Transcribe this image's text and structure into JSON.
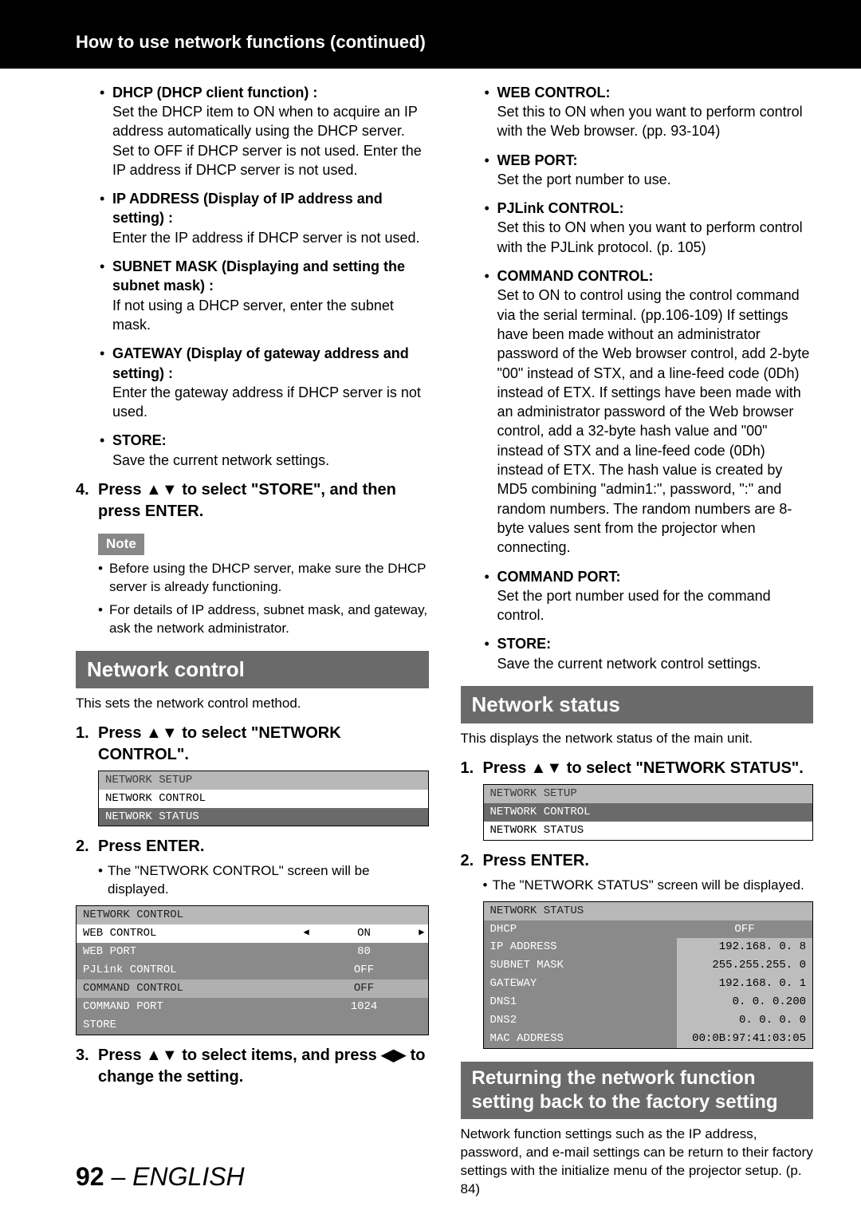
{
  "header": {
    "title": "How to use network functions (continued)"
  },
  "left": {
    "bullets": [
      {
        "title": "DHCP (DHCP client function) :",
        "body": "Set the DHCP item to ON when to acquire an IP address automatically using the DHCP server. Set to OFF if DHCP server is not used. Enter the IP address if DHCP server is not used."
      },
      {
        "title": "IP ADDRESS (Display of IP address and setting) :",
        "body": "Enter the IP address if DHCP server is not used."
      },
      {
        "title": "SUBNET MASK (Displaying and setting the subnet mask) :",
        "body": "If not using a DHCP server, enter the subnet mask."
      },
      {
        "title": "GATEWAY (Display of gateway address and setting) :",
        "body": "Enter the gateway address if DHCP server is not used."
      },
      {
        "title": "STORE:",
        "body": "Save the current network settings."
      }
    ],
    "step4": "Press ▲▼ to select \"STORE\", and then press ENTER.",
    "noteLabel": "Note",
    "notes": [
      "Before using the DHCP server, make sure the DHCP server is already functioning.",
      "For details of IP address, subnet mask, and gateway, ask the network administrator."
    ],
    "sectionBar": "Network control",
    "sectionDesc": "This sets the network control method.",
    "step1": "Press ▲▼ to select \"NETWORK CONTROL\".",
    "menu1": [
      {
        "label": "NETWORK SETUP",
        "style": "lt"
      },
      {
        "label": "NETWORK CONTROL",
        "style": "wt"
      },
      {
        "label": "NETWORK STATUS",
        "style": "sel"
      }
    ],
    "step2": "Press ENTER.",
    "step2sub": "The \"NETWORK CONTROL\" screen will be displayed.",
    "ctrl": {
      "header": "NETWORK CONTROL",
      "rows": [
        {
          "label": "WEB CONTROL",
          "val": "ON",
          "style": "wt",
          "arrows": true
        },
        {
          "label": "WEB PORT",
          "val": "80",
          "style": "gr"
        },
        {
          "label": "PJLink CONTROL",
          "val": "OFF",
          "style": "gr"
        },
        {
          "label": "COMMAND CONTROL",
          "val": "OFF",
          "style": "cmd"
        },
        {
          "label": "COMMAND PORT",
          "val": "1024",
          "style": "gr"
        },
        {
          "label": "STORE",
          "val": "",
          "style": "gr"
        }
      ]
    },
    "step3": "Press ▲▼ to select items, and press ◀▶ to change the setting."
  },
  "right": {
    "bullets": [
      {
        "title": "WEB CONTROL:",
        "body": "Set this to ON when you want to perform control with the Web browser. (pp. 93-104)"
      },
      {
        "title": "WEB PORT:",
        "body": "Set the port number to use."
      },
      {
        "title": "PJLink CONTROL:",
        "body": "Set this to ON when you want to perform control with the PJLink protocol. (p. 105)"
      },
      {
        "title": "COMMAND CONTROL:",
        "body": "Set to ON to control using the control command via the serial terminal. (pp.106-109) If settings have been made without an administrator password of the Web browser control, add 2-byte \"00\" instead of STX, and a line-feed code (0Dh) instead of ETX. If settings have been made with an administrator password of the Web browser control, add a 32-byte hash value and \"00\" instead of STX and a line-feed code (0Dh) instead of ETX. The hash value is created by MD5 combining \"admin1:\", password, \":\" and random numbers. The random numbers are 8-byte values sent from the projector when connecting."
      },
      {
        "title": "COMMAND PORT:",
        "body": "Set the port number used for the command control."
      },
      {
        "title": "STORE:",
        "body": "Save the current network control settings."
      }
    ],
    "sectionBar": "Network status",
    "sectionDesc": "This displays the network status of the main unit.",
    "step1": "Press ▲▼ to select \"NETWORK STATUS\".",
    "menu1": [
      {
        "label": "NETWORK SETUP",
        "style": "lt"
      },
      {
        "label": "NETWORK CONTROL",
        "style": "sel"
      },
      {
        "label": "NETWORK STATUS",
        "style": "wt"
      }
    ],
    "step2": "Press ENTER.",
    "step2sub": "The \"NETWORK STATUS\" screen will be displayed.",
    "status": {
      "header": "NETWORK STATUS",
      "rows": [
        {
          "label": "DHCP",
          "val": "OFF",
          "valbg": false
        },
        {
          "label": "IP ADDRESS",
          "val": "192.168.  0.  8"
        },
        {
          "label": "SUBNET MASK",
          "val": "255.255.255.  0"
        },
        {
          "label": "GATEWAY",
          "val": "192.168.  0.  1"
        },
        {
          "label": "DNS1",
          "val": "0.  0.  0.200"
        },
        {
          "label": "DNS2",
          "val": "0.  0.  0.  0"
        },
        {
          "label": "MAC ADDRESS",
          "val": "00:0B:97:41:03:05"
        }
      ]
    },
    "sectionBar2": "Returning the network function setting back to the factory setting",
    "sectionDesc2": "Network function settings such as the IP address, password, and e-mail settings can be return to their factory settings with the initialize menu of the projector setup. (p. 84)"
  },
  "footer": {
    "page": "92",
    "sep": " – ",
    "lang": "ENGLISH"
  }
}
